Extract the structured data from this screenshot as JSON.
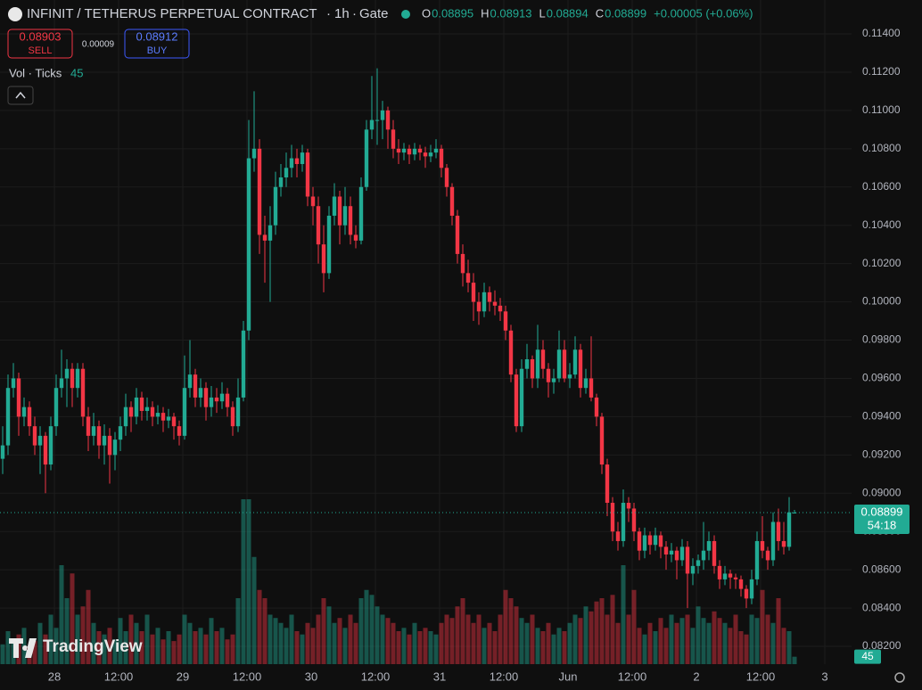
{
  "chart_data": {
    "type": "candlestick",
    "symbol": "INFINIT / TETHERUS PERPETUAL CONTRACT",
    "interval": "1h",
    "exchange": "Gate",
    "ohlc_labels": [
      "O",
      "H",
      "L",
      "C"
    ],
    "change": "+0.00005 (+0.06%)",
    "volume_label": "Vol · Ticks",
    "countdown": "54:18",
    "up_color": "#22ab94",
    "down_color": "#f23645",
    "grid": true,
    "ylim": [
      0.08107,
      0.11577
    ],
    "yticks": [
      {
        "value": 0.082,
        "label": "0.08200"
      },
      {
        "value": 0.084,
        "label": "0.08400"
      },
      {
        "value": 0.086,
        "label": "0.08600"
      },
      {
        "value": 0.088,
        "label": "0.08800"
      },
      {
        "value": 0.09,
        "label": "0.09000"
      },
      {
        "value": 0.092,
        "label": "0.09200"
      },
      {
        "value": 0.094,
        "label": "0.09400"
      },
      {
        "value": 0.096,
        "label": "0.09600"
      },
      {
        "value": 0.098,
        "label": "0.09800"
      },
      {
        "value": 0.1,
        "label": "0.10000"
      },
      {
        "value": 0.102,
        "label": "0.10200"
      },
      {
        "value": 0.104,
        "label": "0.10400"
      },
      {
        "value": 0.106,
        "label": "0.10600"
      },
      {
        "value": 0.108,
        "label": "0.10800"
      },
      {
        "value": 0.11,
        "label": "0.11000"
      },
      {
        "value": 0.112,
        "label": "0.11200"
      },
      {
        "value": 0.114,
        "label": "0.11400"
      }
    ],
    "x_labels": [
      "28",
      "12:00",
      "29",
      "12:00",
      "30",
      "12:00",
      "31",
      "12:00",
      "Jun",
      "12:00",
      "2",
      "12:00",
      "3"
    ],
    "ohlc": [
      [
        0.0918,
        0.0935,
        0.091,
        0.0925
      ],
      [
        0.0925,
        0.0962,
        0.092,
        0.0955
      ],
      [
        0.0955,
        0.0968,
        0.095,
        0.096
      ],
      [
        0.096,
        0.0963,
        0.093,
        0.094
      ],
      [
        0.094,
        0.095,
        0.0935,
        0.0945
      ],
      [
        0.0945,
        0.0948,
        0.093,
        0.0935
      ],
      [
        0.0935,
        0.094,
        0.092,
        0.0925
      ],
      [
        0.0925,
        0.0935,
        0.091,
        0.093
      ],
      [
        0.093,
        0.0932,
        0.09,
        0.0915
      ],
      [
        0.0915,
        0.094,
        0.0912,
        0.0935
      ],
      [
        0.0935,
        0.0962,
        0.093,
        0.0955
      ],
      [
        0.0955,
        0.0975,
        0.095,
        0.096
      ],
      [
        0.096,
        0.097,
        0.0945,
        0.0965
      ],
      [
        0.0965,
        0.0968,
        0.0945,
        0.0955
      ],
      [
        0.0955,
        0.0968,
        0.095,
        0.0965
      ],
      [
        0.0965,
        0.0968,
        0.0935,
        0.094
      ],
      [
        0.094,
        0.0945,
        0.0922,
        0.093
      ],
      [
        0.093,
        0.0942,
        0.0925,
        0.0935
      ],
      [
        0.0935,
        0.0938,
        0.0918,
        0.0925
      ],
      [
        0.0925,
        0.0936,
        0.0915,
        0.093
      ],
      [
        0.093,
        0.0934,
        0.0905,
        0.092
      ],
      [
        0.092,
        0.0932,
        0.0912,
        0.0928
      ],
      [
        0.0928,
        0.094,
        0.0922,
        0.0935
      ],
      [
        0.0935,
        0.0952,
        0.093,
        0.0945
      ],
      [
        0.0945,
        0.0948,
        0.0932,
        0.094
      ],
      [
        0.094,
        0.0955,
        0.0936,
        0.095
      ],
      [
        0.095,
        0.0953,
        0.0938,
        0.0943
      ],
      [
        0.0943,
        0.095,
        0.0938,
        0.0945
      ],
      [
        0.0945,
        0.0948,
        0.0935,
        0.094
      ],
      [
        0.094,
        0.0946,
        0.0936,
        0.0942
      ],
      [
        0.0942,
        0.0945,
        0.0932,
        0.0938
      ],
      [
        0.0938,
        0.0944,
        0.0934,
        0.094
      ],
      [
        0.094,
        0.0942,
        0.0928,
        0.0935
      ],
      [
        0.0935,
        0.0938,
        0.0925,
        0.093
      ],
      [
        0.093,
        0.0972,
        0.0928,
        0.0955
      ],
      [
        0.0955,
        0.098,
        0.095,
        0.0962
      ],
      [
        0.0962,
        0.0965,
        0.0945,
        0.095
      ],
      [
        0.095,
        0.096,
        0.0945,
        0.0955
      ],
      [
        0.0955,
        0.0958,
        0.0938,
        0.0945
      ],
      [
        0.0945,
        0.0956,
        0.094,
        0.095
      ],
      [
        0.095,
        0.0955,
        0.0942,
        0.0948
      ],
      [
        0.0948,
        0.0958,
        0.0944,
        0.0952
      ],
      [
        0.0952,
        0.0955,
        0.094,
        0.0945
      ],
      [
        0.0945,
        0.0948,
        0.093,
        0.0935
      ],
      [
        0.0935,
        0.096,
        0.0932,
        0.095
      ],
      [
        0.095,
        0.099,
        0.0948,
        0.0985
      ],
      [
        0.0985,
        0.1095,
        0.098,
        0.1075
      ],
      [
        0.1075,
        0.111,
        0.1068,
        0.108
      ],
      [
        0.108,
        0.1085,
        0.1025,
        0.1035
      ],
      [
        0.1035,
        0.1045,
        0.101,
        0.1032
      ],
      [
        0.1032,
        0.105,
        0.1,
        0.104
      ],
      [
        0.104,
        0.1068,
        0.1035,
        0.106
      ],
      [
        0.106,
        0.1072,
        0.1055,
        0.1065
      ],
      [
        0.1065,
        0.1078,
        0.106,
        0.107
      ],
      [
        0.107,
        0.1082,
        0.1065,
        0.1075
      ],
      [
        0.1075,
        0.108,
        0.1065,
        0.1072
      ],
      [
        0.1072,
        0.1082,
        0.1068,
        0.1078
      ],
      [
        0.1078,
        0.108,
        0.105,
        0.1055
      ],
      [
        0.1055,
        0.106,
        0.104,
        0.105
      ],
      [
        0.105,
        0.1055,
        0.102,
        0.103
      ],
      [
        0.103,
        0.104,
        0.1005,
        0.1015
      ],
      [
        0.1015,
        0.105,
        0.1012,
        0.1045
      ],
      [
        0.1045,
        0.1062,
        0.104,
        0.1055
      ],
      [
        0.1055,
        0.1058,
        0.103,
        0.104
      ],
      [
        0.104,
        0.106,
        0.1035,
        0.105
      ],
      [
        0.105,
        0.1055,
        0.103,
        0.1035
      ],
      [
        0.1035,
        0.104,
        0.1028,
        0.1032
      ],
      [
        0.1032,
        0.1065,
        0.103,
        0.106
      ],
      [
        0.106,
        0.1095,
        0.1058,
        0.109
      ],
      [
        0.109,
        0.1118,
        0.1085,
        0.1095
      ],
      [
        0.1095,
        0.1122,
        0.1082,
        0.1095
      ],
      [
        0.1095,
        0.1105,
        0.1085,
        0.11
      ],
      [
        0.11,
        0.1102,
        0.108,
        0.109
      ],
      [
        0.109,
        0.1095,
        0.1075,
        0.108
      ],
      [
        0.108,
        0.1085,
        0.1072,
        0.1078
      ],
      [
        0.1078,
        0.1083,
        0.1074,
        0.108
      ],
      [
        0.108,
        0.1082,
        0.1072,
        0.1077
      ],
      [
        0.1077,
        0.1083,
        0.1074,
        0.108
      ],
      [
        0.108,
        0.1082,
        0.1074,
        0.1078
      ],
      [
        0.1078,
        0.1081,
        0.107,
        0.1076
      ],
      [
        0.1076,
        0.1082,
        0.1073,
        0.1078
      ],
      [
        0.1078,
        0.1085,
        0.1075,
        0.108
      ],
      [
        0.108,
        0.1082,
        0.1065,
        0.107
      ],
      [
        0.107,
        0.1072,
        0.1055,
        0.106
      ],
      [
        0.106,
        0.1062,
        0.104,
        0.1045
      ],
      [
        0.1045,
        0.1048,
        0.102,
        0.1025
      ],
      [
        0.1025,
        0.103,
        0.1008,
        0.1015
      ],
      [
        0.1015,
        0.1022,
        0.1005,
        0.101
      ],
      [
        0.101,
        0.1015,
        0.099,
        0.1
      ],
      [
        0.1,
        0.1005,
        0.0988,
        0.0995
      ],
      [
        0.0995,
        0.101,
        0.0992,
        0.1005
      ],
      [
        0.1005,
        0.1008,
        0.0995,
        0.1
      ],
      [
        0.1,
        0.1006,
        0.0993,
        0.0998
      ],
      [
        0.0998,
        0.1002,
        0.099,
        0.0995
      ],
      [
        0.0995,
        0.0998,
        0.098,
        0.0985
      ],
      [
        0.0985,
        0.0988,
        0.0958,
        0.0962
      ],
      [
        0.0962,
        0.0965,
        0.0932,
        0.0935
      ],
      [
        0.0935,
        0.097,
        0.0932,
        0.0965
      ],
      [
        0.0965,
        0.0978,
        0.096,
        0.097
      ],
      [
        0.097,
        0.0972,
        0.0955,
        0.096
      ],
      [
        0.096,
        0.0988,
        0.0955,
        0.0975
      ],
      [
        0.0975,
        0.098,
        0.096,
        0.0965
      ],
      [
        0.0965,
        0.0968,
        0.095,
        0.0958
      ],
      [
        0.0958,
        0.0965,
        0.0952,
        0.096
      ],
      [
        0.096,
        0.0985,
        0.0958,
        0.0975
      ],
      [
        0.0975,
        0.098,
        0.0958,
        0.096
      ],
      [
        0.096,
        0.0968,
        0.0955,
        0.0962
      ],
      [
        0.0962,
        0.0982,
        0.096,
        0.0975
      ],
      [
        0.0975,
        0.0978,
        0.095,
        0.0955
      ],
      [
        0.0955,
        0.0965,
        0.0952,
        0.096
      ],
      [
        0.096,
        0.0982,
        0.0948,
        0.095
      ],
      [
        0.095,
        0.0952,
        0.0935,
        0.094
      ],
      [
        0.094,
        0.0942,
        0.091,
        0.0915
      ],
      [
        0.0915,
        0.0918,
        0.0888,
        0.0895
      ],
      [
        0.0895,
        0.0898,
        0.0875,
        0.088
      ],
      [
        0.088,
        0.0885,
        0.087,
        0.0875
      ],
      [
        0.0875,
        0.0902,
        0.0872,
        0.0895
      ],
      [
        0.0895,
        0.0898,
        0.0885,
        0.0892
      ],
      [
        0.0892,
        0.0895,
        0.0875,
        0.088
      ],
      [
        0.088,
        0.0882,
        0.0865,
        0.087
      ],
      [
        0.087,
        0.0882,
        0.0866,
        0.0878
      ],
      [
        0.0878,
        0.088,
        0.0868,
        0.0873
      ],
      [
        0.0873,
        0.0882,
        0.087,
        0.0878
      ],
      [
        0.0878,
        0.088,
        0.0866,
        0.0872
      ],
      [
        0.0872,
        0.0875,
        0.086,
        0.0868
      ],
      [
        0.0868,
        0.0874,
        0.0864,
        0.087
      ],
      [
        0.087,
        0.0872,
        0.0855,
        0.0865
      ],
      [
        0.0865,
        0.0876,
        0.0862,
        0.0872
      ],
      [
        0.0872,
        0.0875,
        0.084,
        0.0858
      ],
      [
        0.0858,
        0.0866,
        0.0852,
        0.0862
      ],
      [
        0.0862,
        0.0868,
        0.0858,
        0.0865
      ],
      [
        0.0865,
        0.0885,
        0.086,
        0.087
      ],
      [
        0.087,
        0.088,
        0.0865,
        0.0875
      ],
      [
        0.0875,
        0.0878,
        0.0858,
        0.0862
      ],
      [
        0.0862,
        0.0865,
        0.085,
        0.0855
      ],
      [
        0.0855,
        0.0862,
        0.0852,
        0.0858
      ],
      [
        0.0858,
        0.086,
        0.085,
        0.0856
      ],
      [
        0.0856,
        0.0858,
        0.085,
        0.0855
      ],
      [
        0.0855,
        0.0857,
        0.0846,
        0.085
      ],
      [
        0.085,
        0.0852,
        0.084,
        0.0845
      ],
      [
        0.0845,
        0.086,
        0.0842,
        0.0855
      ],
      [
        0.0855,
        0.088,
        0.0852,
        0.0875
      ],
      [
        0.0875,
        0.0888,
        0.0866,
        0.087
      ],
      [
        0.087,
        0.0872,
        0.086,
        0.0865
      ],
      [
        0.0865,
        0.089,
        0.0862,
        0.0885
      ],
      [
        0.0885,
        0.0892,
        0.087,
        0.0875
      ],
      [
        0.0875,
        0.0885,
        0.0868,
        0.0872
      ],
      [
        0.0872,
        0.0898,
        0.087,
        0.089
      ],
      [
        0.08895,
        0.08913,
        0.08894,
        0.08899
      ]
    ],
    "volume": [
      120,
      200,
      150,
      180,
      220,
      100,
      140,
      250,
      180,
      300,
      220,
      600,
      400,
      550,
      300,
      350,
      450,
      250,
      200,
      180,
      220,
      150,
      280,
      200,
      300,
      250,
      200,
      300,
      180,
      220,
      150,
      200,
      140,
      180,
      300,
      250,
      200,
      220,
      180,
      280,
      200,
      220,
      150,
      180,
      400,
      1000,
      1000,
      650,
      450,
      400,
      300,
      280,
      250,
      220,
      300,
      200,
      180,
      250,
      220,
      300,
      400,
      350,
      250,
      280,
      220,
      300,
      250,
      400,
      450,
      420,
      350,
      300,
      280,
      250,
      200,
      220,
      180,
      250,
      200,
      220,
      200,
      180,
      250,
      300,
      280,
      350,
      400,
      300,
      250,
      300,
      220,
      250,
      200,
      300,
      450,
      400,
      350,
      280,
      250,
      300,
      220,
      200,
      250,
      180,
      220,
      200,
      250,
      300,
      280,
      350,
      320,
      380,
      400,
      300,
      420,
      250,
      600,
      300,
      450,
      220,
      180,
      250,
      200,
      280,
      220,
      300,
      250,
      280,
      300,
      220,
      350,
      280,
      250,
      320,
      280,
      250,
      220,
      300,
      200,
      180,
      300,
      280,
      450,
      300,
      250,
      400,
      220,
      200,
      45
    ]
  },
  "trade": {
    "sell_price": "0.08903",
    "sell": "SELL",
    "spread": "0.00009",
    "buy_price": "0.08912",
    "buy": "BUY"
  },
  "branding": "TradingView"
}
